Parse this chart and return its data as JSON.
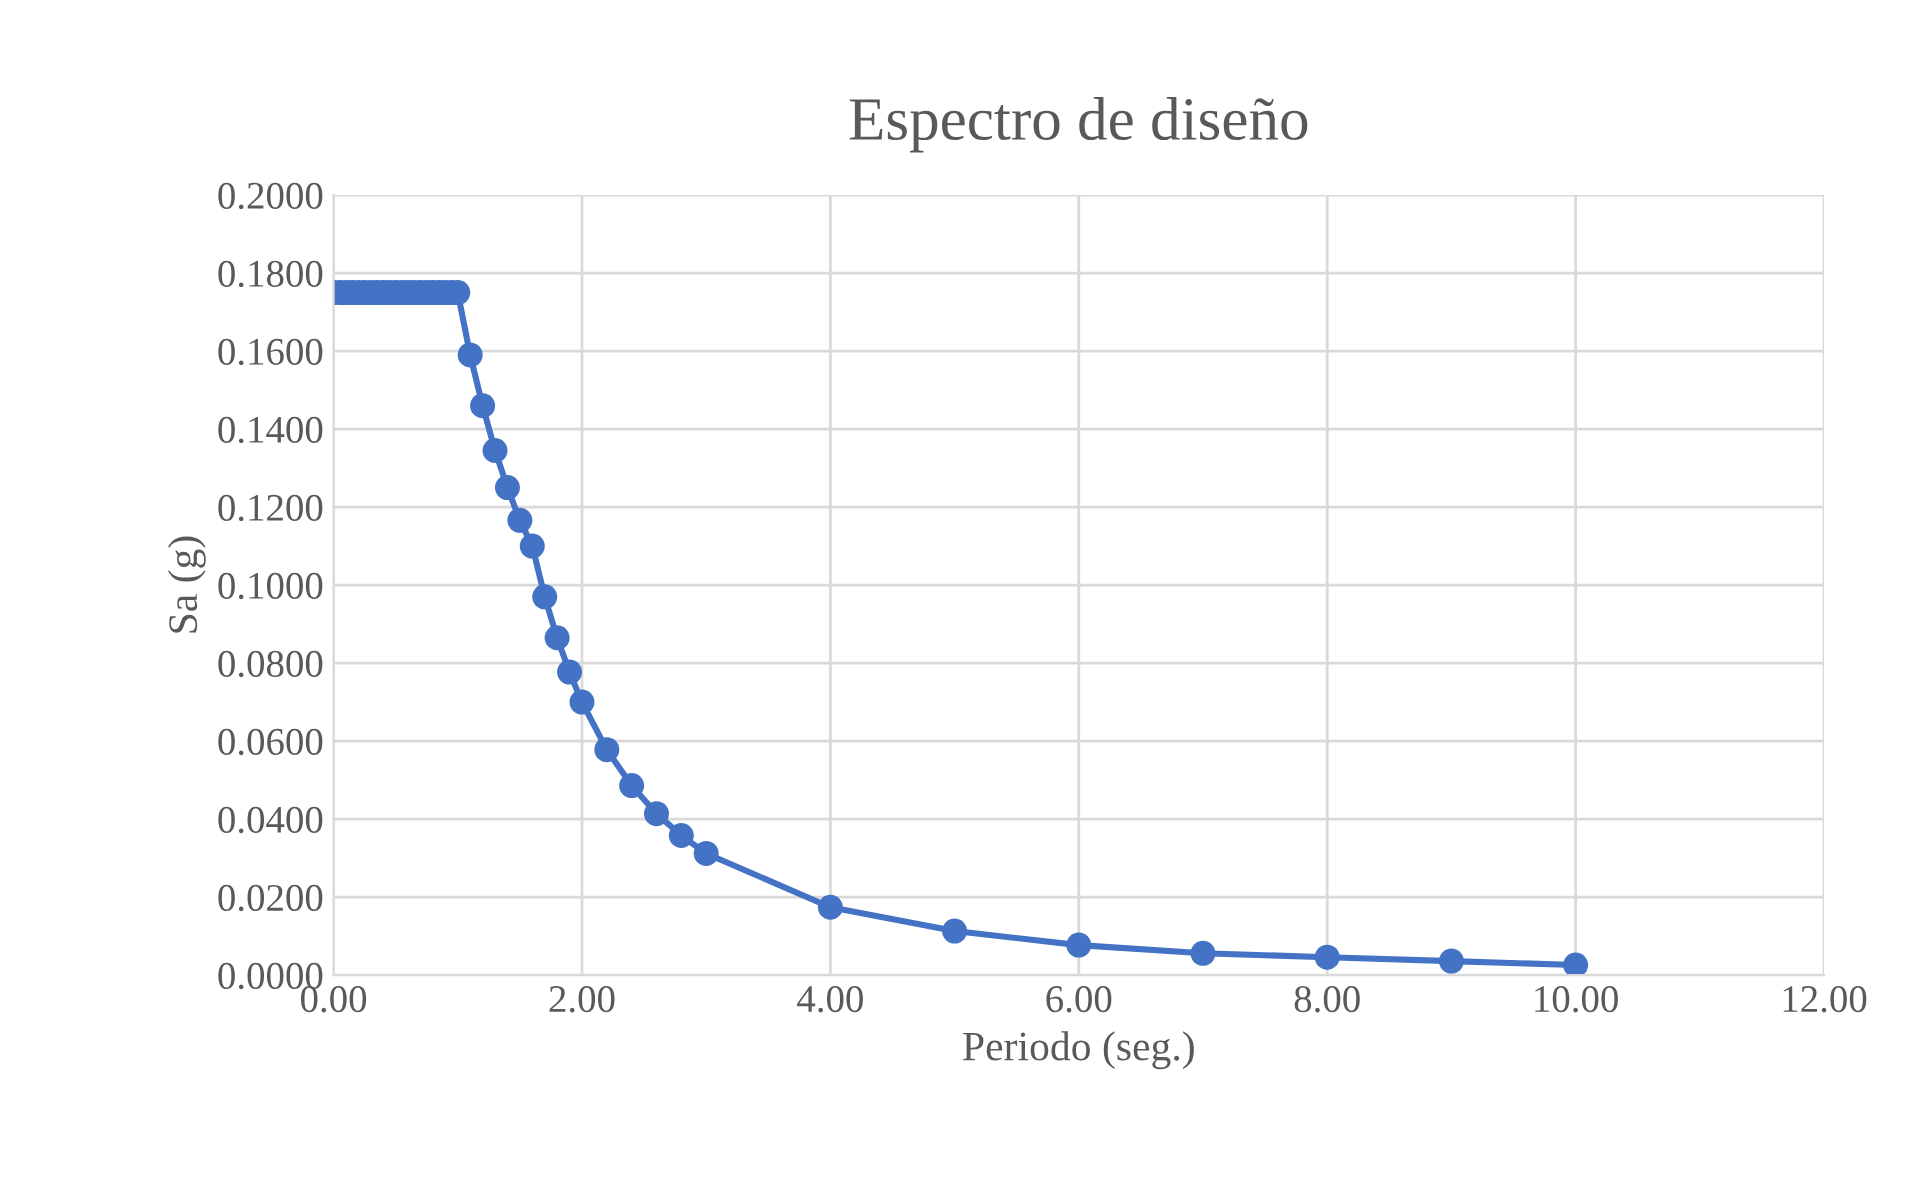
{
  "chart_data": {
    "type": "line",
    "title": "Espectro de diseño",
    "xlabel": "Periodo (seg.)",
    "ylabel": "Sa (g)",
    "x": [
      0.0,
      0.05,
      0.1,
      0.15,
      0.2,
      0.25,
      0.3,
      0.35,
      0.4,
      0.45,
      0.5,
      0.55,
      0.6,
      0.65,
      0.7,
      0.75,
      0.8,
      0.85,
      0.9,
      0.95,
      1.0,
      1.1,
      1.2,
      1.3,
      1.4,
      1.5,
      1.6,
      1.7,
      1.8,
      1.9,
      2.0,
      2.2,
      2.4,
      2.6,
      2.8,
      3.0,
      4.0,
      5.0,
      6.0,
      7.0,
      8.0,
      9.0,
      10.0
    ],
    "series": [
      {
        "color": "#4472c4",
        "values": [
          0.175,
          0.175,
          0.175,
          0.175,
          0.175,
          0.175,
          0.175,
          0.175,
          0.175,
          0.175,
          0.175,
          0.175,
          0.175,
          0.175,
          0.175,
          0.175,
          0.175,
          0.175,
          0.175,
          0.175,
          0.175,
          0.159,
          0.146,
          0.1345,
          0.125,
          0.1166,
          0.11,
          0.097,
          0.0865,
          0.0777,
          0.07,
          0.0578,
          0.0486,
          0.0414,
          0.0358,
          0.0312,
          0.0174,
          0.0113,
          0.0077,
          0.0056,
          0.0046,
          0.0036,
          0.0026
        ]
      }
    ],
    "xlim": [
      0,
      12
    ],
    "xticks": [
      {
        "value": 0,
        "label": "0.00"
      },
      {
        "value": 2,
        "label": "2.00"
      },
      {
        "value": 4,
        "label": "4.00"
      },
      {
        "value": 6,
        "label": "6.00"
      },
      {
        "value": 8,
        "label": "8.00"
      },
      {
        "value": 10,
        "label": "10.00"
      },
      {
        "value": 12,
        "label": "12.00"
      }
    ],
    "ylim": [
      0,
      0.2
    ],
    "yticks": [
      {
        "value": 0,
        "label": "0.0000"
      },
      {
        "value": 0.02,
        "label": "0.0200"
      },
      {
        "value": 0.04,
        "label": "0.0400"
      },
      {
        "value": 0.06,
        "label": "0.0600"
      },
      {
        "value": 0.08,
        "label": "0.0800"
      },
      {
        "value": 0.1,
        "label": "0.1000"
      },
      {
        "value": 0.12,
        "label": "0.1200"
      },
      {
        "value": 0.14,
        "label": "0.1400"
      },
      {
        "value": 0.16,
        "label": "0.1600"
      },
      {
        "value": 0.18,
        "label": "0.1800"
      },
      {
        "value": 0.2,
        "label": "0.2000"
      }
    ],
    "grid": true,
    "marker": "circle",
    "line_style": "solid"
  }
}
